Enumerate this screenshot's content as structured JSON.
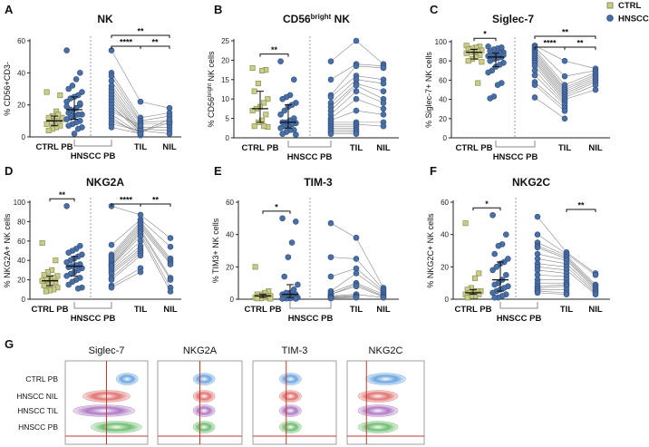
{
  "legend": [
    {
      "label": "CTRL",
      "color": "#c9cc8a",
      "shape": "square"
    },
    {
      "label": "HNSCC",
      "color": "#4a6fa5",
      "shape": "circle"
    }
  ],
  "colors": {
    "ctrl": "#c9cc8a",
    "ctrl_edge": "#8c9050",
    "hnscc": "#4a6fa5",
    "hnscc_edge": "#2f4f7f",
    "cursor_line": "#c0392b"
  },
  "chart_data": [
    {
      "letter": "A",
      "title": "NK",
      "ylabel": "% CD56+CD3-",
      "ylabel_sup": "",
      "ylabel_post": "",
      "type": "scatter",
      "ylim": [
        0,
        60
      ],
      "yticks": [
        0,
        20,
        40,
        60
      ],
      "categories": [
        "CTRL PB",
        "HNSCC PB",
        "TIL",
        "NIL"
      ],
      "ctrl_pb": [
        28,
        26,
        16,
        13,
        12,
        11,
        10,
        10,
        9,
        8,
        7,
        6,
        5,
        4,
        12,
        14
      ],
      "hnscc_pb": [
        54,
        40,
        36,
        32,
        30,
        28,
        26,
        25,
        24,
        22,
        20,
        18,
        16,
        15,
        14,
        14,
        13,
        12,
        11,
        10,
        9,
        8,
        7,
        6,
        5,
        2,
        17,
        19,
        21
      ],
      "paired_pb": [
        54,
        40,
        38,
        35,
        32,
        30,
        28,
        26,
        24,
        22,
        20,
        18,
        16,
        14,
        12,
        10,
        8,
        6
      ],
      "til": [
        22,
        12,
        10,
        9,
        8,
        6,
        5,
        4,
        3,
        3,
        2,
        5,
        7,
        2,
        1,
        3,
        4,
        2
      ],
      "nil": [
        18,
        15,
        13,
        10,
        8,
        6,
        4,
        2,
        9,
        11
      ],
      "significance": [
        {
          "from": "paired_pb",
          "to": "til",
          "label": "****"
        },
        {
          "from": "til",
          "to": "nil",
          "label": "**"
        },
        {
          "from": "paired_pb",
          "to": "nil",
          "label": "**"
        }
      ]
    },
    {
      "letter": "B",
      "title": "CD56",
      "title_sup": "bright",
      "title_post": " NK",
      "ylabel": "% CD56",
      "ylabel_sup": "bright",
      "ylabel_post": " NK cells",
      "type": "scatter",
      "ylim": [
        0,
        25
      ],
      "yticks": [
        0,
        5,
        10,
        15,
        20,
        25
      ],
      "categories": [
        "CTRL PB",
        "HNSCC PB",
        "TIL",
        "NIL"
      ],
      "ctrl_pb": [
        18,
        17.5,
        17.3,
        14,
        12,
        10,
        9,
        8,
        7.5,
        7,
        6,
        4.5,
        4,
        3,
        2.8,
        3
      ],
      "hnscc_pb": [
        19.7,
        15,
        11,
        10.5,
        10,
        9,
        8.5,
        8,
        7,
        6,
        5,
        4.5,
        4,
        4,
        3.8,
        3.5,
        3,
        3,
        2.5,
        2,
        2,
        1.5,
        1,
        0.8
      ],
      "paired_pb": [
        19.7,
        15,
        11,
        10.5,
        9,
        8,
        7,
        6,
        5,
        4.5,
        4,
        3.5,
        3,
        2.5,
        2,
        1.5,
        1
      ],
      "til": [
        25,
        19,
        18.5,
        16,
        15,
        14,
        13.5,
        12,
        10,
        7,
        4,
        3.5,
        3,
        2.5,
        2,
        1.5,
        1
      ],
      "nil": [
        19,
        18.5,
        18,
        15,
        14,
        12,
        10,
        9,
        7.5,
        6,
        4,
        3
      ],
      "significance": [
        {
          "from": "ctrl_pb",
          "to": "hnscc_pb",
          "label": "**"
        }
      ]
    },
    {
      "letter": "C",
      "title": "Siglec-7",
      "ylabel": "% Siglec-7+ NK cells",
      "ylabel_sup": "",
      "ylabel_post": "",
      "type": "scatter",
      "ylim": [
        0,
        100
      ],
      "yticks": [
        0,
        20,
        40,
        60,
        80,
        100
      ],
      "categories": [
        "CTRL PB",
        "HNSCC PB",
        "TIL",
        "NIL"
      ],
      "ctrl_pb": [
        96,
        95,
        94,
        93,
        92,
        91,
        90,
        90,
        89,
        88,
        86,
        84,
        82,
        80,
        79,
        57
      ],
      "hnscc_pb": [
        95,
        94,
        93,
        92,
        90,
        89,
        88,
        87,
        86,
        85,
        84,
        83,
        82,
        80,
        78,
        76,
        74,
        70,
        68,
        57,
        55,
        43,
        41,
        86,
        88
      ],
      "paired_pb": [
        96,
        94,
        92,
        90,
        88,
        86,
        84,
        82,
        80,
        78,
        75,
        70,
        65,
        58,
        55,
        42
      ],
      "til": [
        80,
        64,
        55,
        52,
        50,
        48,
        46,
        44,
        42,
        40,
        38,
        36,
        34,
        31,
        28,
        20
      ],
      "nil": [
        72,
        70,
        68,
        66,
        64,
        62,
        60,
        58,
        55,
        50
      ],
      "significance": [
        {
          "from": "ctrl_pb",
          "to": "hnscc_pb",
          "label": "*"
        },
        {
          "from": "paired_pb",
          "to": "til",
          "label": "****"
        },
        {
          "from": "til",
          "to": "nil",
          "label": "**"
        },
        {
          "from": "paired_pb",
          "to": "nil",
          "label": "**"
        }
      ]
    },
    {
      "letter": "D",
      "title": "NKG2A",
      "ylabel": "% NKG2A+ NK cells",
      "ylabel_sup": "",
      "ylabel_post": "",
      "type": "scatter",
      "ylim": [
        0,
        100
      ],
      "yticks": [
        0,
        20,
        40,
        60,
        80,
        100
      ],
      "categories": [
        "CTRL PB",
        "HNSCC PB",
        "TIL",
        "NIL"
      ],
      "ctrl_pb": [
        58,
        40,
        30,
        28,
        25,
        24,
        22,
        21,
        20,
        19,
        18,
        17,
        15,
        14,
        12,
        10,
        9,
        8
      ],
      "hnscc_pb": [
        96,
        55,
        52,
        50,
        48,
        46,
        44,
        42,
        40,
        38,
        36,
        35,
        34,
        33,
        32,
        30,
        28,
        26,
        24,
        22,
        20,
        18,
        15,
        12,
        11
      ],
      "paired_pb": [
        96,
        56,
        46,
        44,
        42,
        40,
        38,
        36,
        35,
        34,
        32,
        30,
        28,
        26,
        22,
        20,
        14,
        12
      ],
      "til": [
        87,
        82,
        80,
        78,
        76,
        74,
        72,
        70,
        68,
        65,
        60,
        55,
        52,
        50,
        48,
        45,
        32,
        28
      ],
      "nil": [
        63,
        54,
        42,
        40,
        38,
        36,
        22,
        20,
        12,
        8
      ],
      "significance": [
        {
          "from": "ctrl_pb",
          "to": "hnscc_pb",
          "label": "**"
        },
        {
          "from": "paired_pb",
          "to": "til",
          "label": "****"
        },
        {
          "from": "til",
          "to": "nil",
          "label": "**"
        }
      ]
    },
    {
      "letter": "E",
      "title": "TIM-3",
      "ylabel": "% TIM3+ NK cells",
      "ylabel_sup": "",
      "ylabel_post": "",
      "type": "scatter",
      "ylim": [
        0,
        60
      ],
      "yticks": [
        0,
        20,
        40,
        60
      ],
      "categories": [
        "CTRL PB",
        "HNSCC PB",
        "TIL",
        "NIL"
      ],
      "ctrl_pb": [
        20,
        5,
        4,
        3,
        3,
        2,
        2,
        2,
        1.5,
        1,
        1,
        1,
        0.5,
        0.5,
        0.3
      ],
      "hnscc_pb": [
        50,
        48,
        35,
        26,
        14,
        9,
        6,
        4,
        4,
        3,
        3,
        2,
        2,
        1.5,
        1,
        1,
        0.5,
        0.5,
        0.3,
        0.3
      ],
      "paired_pb": [
        47,
        26,
        14,
        5,
        4,
        3,
        3,
        2,
        2,
        1.5,
        1,
        1,
        0.5
      ],
      "til": [
        38,
        25,
        19,
        16,
        10,
        9,
        8,
        3,
        3,
        2,
        2,
        1.5,
        1
      ],
      "nil": [
        7,
        6,
        5,
        4,
        3,
        2,
        1.5,
        1
      ],
      "significance": [
        {
          "from": "ctrl_pb",
          "to": "hnscc_pb",
          "label": "*"
        }
      ]
    },
    {
      "letter": "F",
      "title": "NKG2C",
      "ylabel": "% NKG2C+ NK cells",
      "ylabel_sup": "",
      "ylabel_post": "",
      "type": "scatter",
      "ylim": [
        0,
        60
      ],
      "yticks": [
        0,
        20,
        40,
        60
      ],
      "categories": [
        "CTRL PB",
        "HNSCC PB",
        "TIL",
        "NIL"
      ],
      "ctrl_pb": [
        47,
        16,
        13,
        7,
        6,
        5,
        5,
        4,
        4,
        3,
        3,
        2,
        2,
        1
      ],
      "hnscc_pb": [
        52,
        40,
        34,
        33,
        28,
        25,
        23,
        22,
        20,
        18,
        15,
        12,
        10,
        9,
        8,
        7,
        6,
        5,
        4,
        3,
        2,
        1,
        1
      ],
      "paired_pb": [
        51,
        40,
        35,
        33,
        32,
        28,
        25,
        22,
        20,
        18,
        15,
        12,
        10,
        8,
        7,
        6,
        5,
        4
      ],
      "til": [
        29,
        28,
        27,
        26,
        25,
        24,
        22,
        20,
        18,
        16,
        14,
        12,
        10,
        9,
        8,
        6,
        4,
        3
      ],
      "nil": [
        16,
        15,
        9,
        8,
        7,
        6,
        5,
        4,
        3
      ],
      "significance": [
        {
          "from": "ctrl_pb",
          "to": "hnscc_pb",
          "label": "*"
        },
        {
          "from": "til",
          "to": "nil",
          "label": "**"
        }
      ]
    }
  ],
  "panel_g": {
    "letter": "G",
    "markers": [
      "Siglec-7",
      "NKG2A",
      "TIM-3",
      "NKG2C"
    ],
    "rows": [
      {
        "label": "CTRL PB",
        "color": "#4a90d9"
      },
      {
        "label": "HNSCC NIL",
        "color": "#d9534f"
      },
      {
        "label": "HNSCC TIL",
        "color": "#9b59b6"
      },
      {
        "label": "HNSCC PB",
        "color": "#4caf50"
      }
    ]
  }
}
